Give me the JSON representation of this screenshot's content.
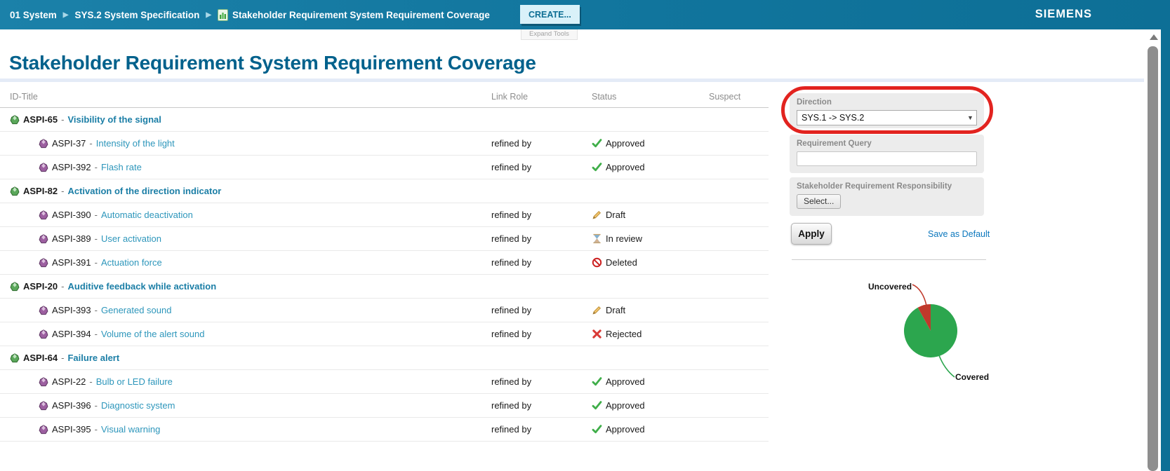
{
  "header": {
    "breadcrumb": [
      "01 System",
      "SYS.2 System Specification",
      "Stakeholder Requirement System Requirement Coverage"
    ],
    "create_label": "CREATE...",
    "expand_tools_label": "Expand Tools",
    "brand": "SIEMENS"
  },
  "page": {
    "title": "Stakeholder Requirement System Requirement Coverage"
  },
  "table": {
    "columns": [
      "ID-Title",
      "Link Role",
      "Status",
      "Suspect"
    ],
    "separator": "-",
    "rows": [
      {
        "type": "parent",
        "id": "ASPI-65",
        "title": "Visibility of the signal",
        "link_role": "",
        "status": null
      },
      {
        "type": "child",
        "id": "ASPI-37",
        "title": "Intensity of the light",
        "link_role": "refined by",
        "status": {
          "key": "approved",
          "label": "Approved"
        }
      },
      {
        "type": "child",
        "id": "ASPI-392",
        "title": "Flash rate",
        "link_role": "refined by",
        "status": {
          "key": "approved",
          "label": "Approved"
        }
      },
      {
        "type": "parent",
        "id": "ASPI-82",
        "title": "Activation of the direction indicator",
        "link_role": "",
        "status": null
      },
      {
        "type": "child",
        "id": "ASPI-390",
        "title": "Automatic deactivation",
        "link_role": "refined by",
        "status": {
          "key": "draft",
          "label": "Draft"
        }
      },
      {
        "type": "child",
        "id": "ASPI-389",
        "title": "User activation",
        "link_role": "refined by",
        "status": {
          "key": "inreview",
          "label": "In review"
        }
      },
      {
        "type": "child",
        "id": "ASPI-391",
        "title": "Actuation force",
        "link_role": "refined by",
        "status": {
          "key": "deleted",
          "label": "Deleted"
        }
      },
      {
        "type": "parent",
        "id": "ASPI-20",
        "title": "Auditive feedback while activation",
        "link_role": "",
        "status": null
      },
      {
        "type": "child",
        "id": "ASPI-393",
        "title": "Generated sound",
        "link_role": "refined by",
        "status": {
          "key": "draft",
          "label": "Draft"
        }
      },
      {
        "type": "child",
        "id": "ASPI-394",
        "title": "Volume of the alert sound",
        "link_role": "refined by",
        "status": {
          "key": "rejected",
          "label": "Rejected"
        }
      },
      {
        "type": "parent",
        "id": "ASPI-64",
        "title": "Failure alert",
        "link_role": "",
        "status": null
      },
      {
        "type": "child",
        "id": "ASPI-22",
        "title": "Bulb or LED failure",
        "link_role": "refined by",
        "status": {
          "key": "approved",
          "label": "Approved"
        }
      },
      {
        "type": "child",
        "id": "ASPI-396",
        "title": "Diagnostic system",
        "link_role": "refined by",
        "status": {
          "key": "approved",
          "label": "Approved"
        }
      },
      {
        "type": "child",
        "id": "ASPI-395",
        "title": "Visual warning",
        "link_role": "refined by",
        "status": {
          "key": "approved",
          "label": "Approved"
        }
      }
    ]
  },
  "filters": {
    "direction": {
      "label": "Direction",
      "value": "SYS.1 -> SYS.2"
    },
    "query": {
      "label": "Requirement Query",
      "value": ""
    },
    "responsibility": {
      "label": "Stakeholder Requirement Responsibility",
      "button_label": "Select..."
    },
    "apply_label": "Apply",
    "save_default_label": "Save as Default"
  },
  "chart_data": {
    "type": "pie",
    "title": "",
    "labels": [
      "Covered",
      "Uncovered"
    ],
    "values": [
      92,
      8
    ],
    "colors": [
      "#2ca64e",
      "#c0392b"
    ],
    "legend_position": "callout-labels"
  },
  "colors": {
    "topbar": "#11759d",
    "title": "#00618c",
    "annotation_red": "#e2231f",
    "link_blue": "#0b77bd",
    "parent_link": "#1b7ea6",
    "child_link": "#2d96bb",
    "pie_covered": "#2ca64e",
    "pie_uncovered": "#c0392b"
  }
}
